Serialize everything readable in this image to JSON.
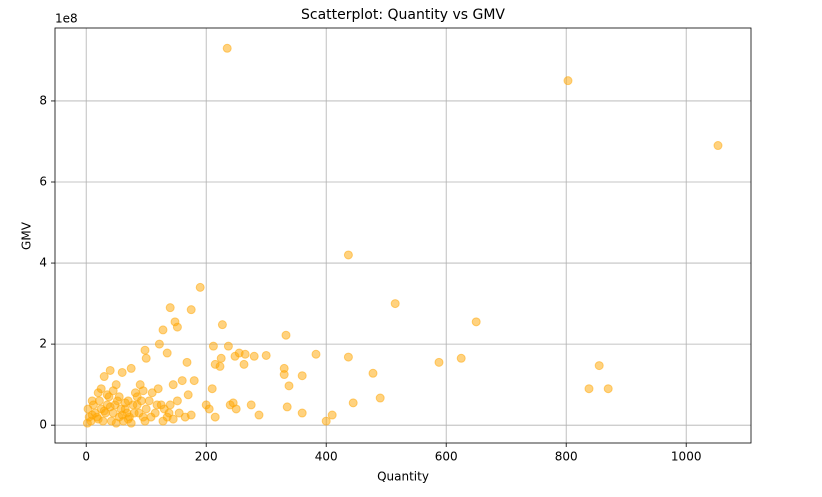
{
  "chart_data": {
    "type": "scatter",
    "title": "Scatterplot: Quantity vs GMV",
    "xlabel": "Quantity",
    "ylabel": "GMV",
    "y_offset_label": "1e8",
    "x": [
      235,
      803,
      1053,
      437,
      190,
      515,
      140,
      175,
      148,
      650,
      227,
      152,
      128,
      333,
      122,
      212,
      237,
      248,
      255,
      265,
      300,
      280,
      383,
      437,
      625,
      588,
      168,
      100,
      98,
      135,
      225,
      215,
      223,
      263,
      330,
      330,
      360,
      478,
      855,
      338,
      838,
      870,
      490,
      445,
      360,
      410,
      400,
      335,
      288,
      275,
      240,
      250,
      245,
      215,
      200,
      205,
      210,
      180,
      160,
      145,
      120,
      170,
      175,
      152,
      140,
      130,
      110,
      90,
      75,
      60,
      40,
      30,
      50,
      20,
      10,
      5,
      2,
      15,
      25,
      35,
      45,
      55,
      65,
      70,
      80,
      85,
      95,
      100,
      105,
      115,
      125,
      135,
      145,
      155,
      3,
      8,
      12,
      18,
      22,
      28,
      32,
      38,
      42,
      48,
      52,
      58,
      62,
      68,
      72,
      78,
      82,
      88,
      92,
      98,
      108,
      118,
      128,
      138,
      165,
      60,
      40,
      30,
      70,
      50,
      20,
      10,
      25,
      35,
      45,
      55,
      85,
      95,
      65,
      75
    ],
    "values": [
      9.3,
      8.5,
      6.9,
      4.2,
      3.4,
      3.0,
      2.9,
      2.85,
      2.55,
      2.55,
      2.48,
      2.42,
      2.35,
      2.22,
      2.0,
      1.95,
      1.95,
      1.7,
      1.78,
      1.75,
      1.72,
      1.7,
      1.75,
      1.68,
      1.65,
      1.55,
      1.55,
      1.65,
      1.85,
      1.78,
      1.65,
      1.5,
      1.45,
      1.5,
      1.4,
      1.25,
      1.22,
      1.28,
      1.47,
      0.97,
      0.9,
      0.9,
      0.67,
      0.55,
      0.3,
      0.25,
      0.1,
      0.45,
      0.25,
      0.5,
      0.5,
      0.4,
      0.55,
      0.2,
      0.5,
      0.4,
      0.9,
      1.1,
      1.1,
      1.0,
      0.9,
      0.75,
      0.25,
      0.6,
      0.5,
      0.4,
      0.8,
      1.0,
      1.4,
      1.3,
      1.35,
      1.2,
      1.0,
      0.8,
      0.6,
      0.2,
      0.05,
      0.3,
      0.4,
      0.5,
      0.3,
      0.2,
      0.4,
      0.6,
      0.3,
      0.5,
      0.2,
      0.4,
      0.6,
      0.3,
      0.5,
      0.2,
      0.15,
      0.3,
      0.4,
      0.1,
      0.5,
      0.2,
      0.6,
      0.1,
      0.3,
      0.7,
      0.1,
      0.5,
      0.6,
      0.4,
      0.1,
      0.3,
      0.2,
      0.5,
      0.8,
      0.3,
      0.6,
      0.1,
      0.2,
      0.5,
      0.1,
      0.3,
      0.2,
      0.25,
      0.45,
      0.35,
      0.15,
      0.05,
      0.15,
      0.25,
      0.9,
      0.75,
      0.85,
      0.7,
      0.7,
      0.85,
      0.55,
      0.05
    ],
    "color": "#ffa500",
    "opacity": 0.5,
    "xlim": [
      -52,
      1108
    ],
    "xticks": [
      0,
      200,
      400,
      600,
      800,
      1000
    ],
    "ylim": [
      -0.44,
      9.8
    ],
    "yticks": [
      0,
      2,
      4,
      6,
      8
    ],
    "grid": true
  }
}
